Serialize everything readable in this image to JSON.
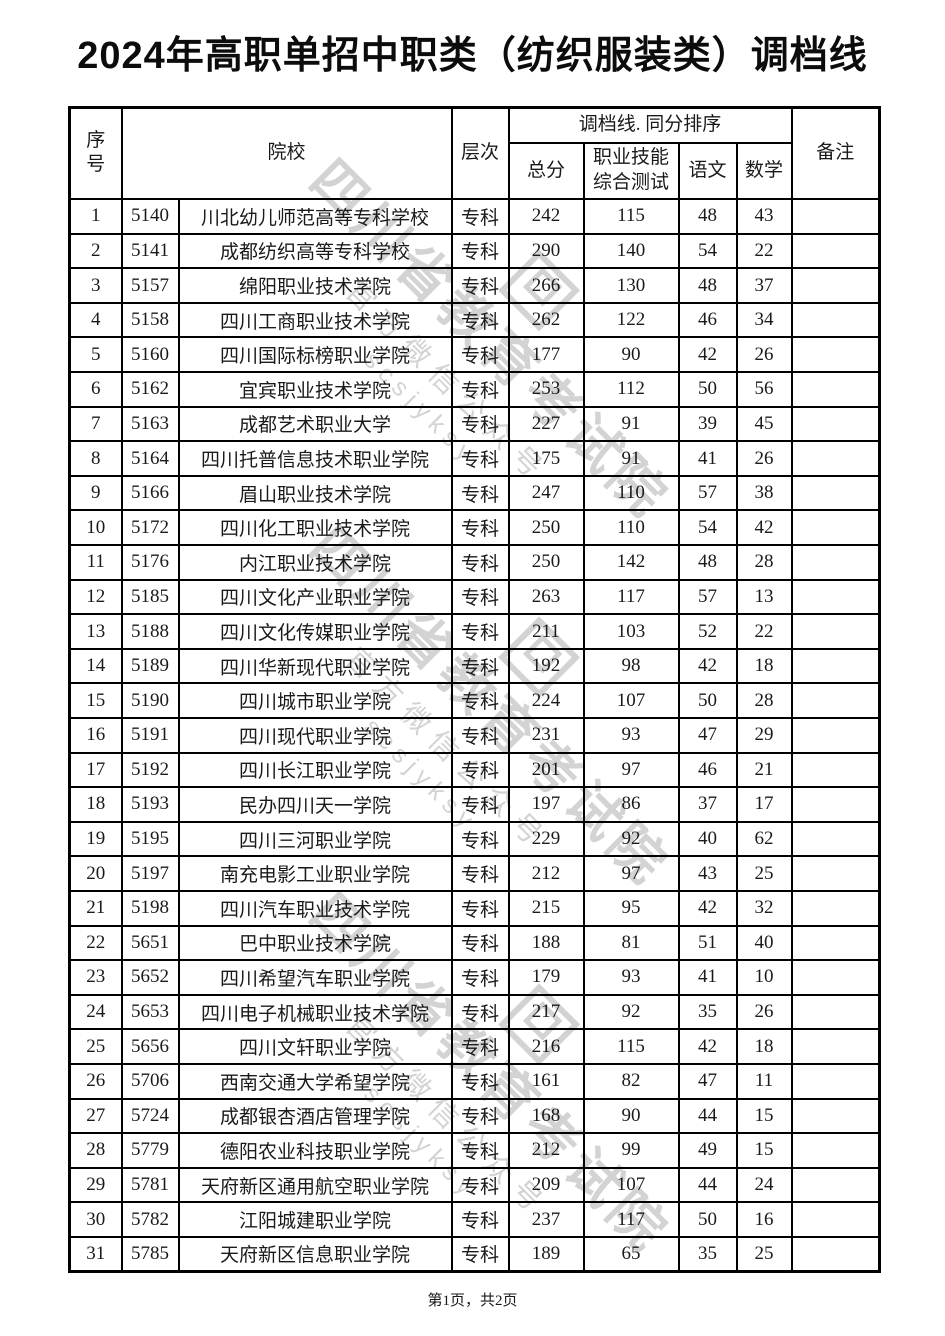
{
  "page": {
    "title": "2024年高职单招中职类（纺织服装类）调档线",
    "footer": "第1页，共2页"
  },
  "watermark": {
    "org": "四川省教育考试院",
    "account": "官方微信公众号",
    "wechat_id": "scsjyksy"
  },
  "table": {
    "header": {
      "seq": "序\n号",
      "school": "院校",
      "level": "层次",
      "tiebreak_group": "调档线. 同分排序",
      "total": "总分",
      "skill": "职业技能\n综合测试",
      "chinese": "语文",
      "math": "数学",
      "remark": "备注"
    },
    "rows": [
      [
        "1",
        "5140",
        "川北幼儿师范高等专科学校",
        "专科",
        "242",
        "115",
        "48",
        "43",
        ""
      ],
      [
        "2",
        "5141",
        "成都纺织高等专科学校",
        "专科",
        "290",
        "140",
        "54",
        "22",
        ""
      ],
      [
        "3",
        "5157",
        "绵阳职业技术学院",
        "专科",
        "266",
        "130",
        "48",
        "37",
        ""
      ],
      [
        "4",
        "5158",
        "四川工商职业技术学院",
        "专科",
        "262",
        "122",
        "46",
        "34",
        ""
      ],
      [
        "5",
        "5160",
        "四川国际标榜职业学院",
        "专科",
        "177",
        "90",
        "42",
        "26",
        ""
      ],
      [
        "6",
        "5162",
        "宜宾职业技术学院",
        "专科",
        "253",
        "112",
        "50",
        "56",
        ""
      ],
      [
        "7",
        "5163",
        "成都艺术职业大学",
        "专科",
        "227",
        "91",
        "39",
        "45",
        ""
      ],
      [
        "8",
        "5164",
        "四川托普信息技术职业学院",
        "专科",
        "175",
        "91",
        "41",
        "26",
        ""
      ],
      [
        "9",
        "5166",
        "眉山职业技术学院",
        "专科",
        "247",
        "110",
        "57",
        "38",
        ""
      ],
      [
        "10",
        "5172",
        "四川化工职业技术学院",
        "专科",
        "250",
        "110",
        "54",
        "42",
        ""
      ],
      [
        "11",
        "5176",
        "内江职业技术学院",
        "专科",
        "250",
        "142",
        "48",
        "28",
        ""
      ],
      [
        "12",
        "5185",
        "四川文化产业职业学院",
        "专科",
        "263",
        "117",
        "57",
        "13",
        ""
      ],
      [
        "13",
        "5188",
        "四川文化传媒职业学院",
        "专科",
        "211",
        "103",
        "52",
        "22",
        ""
      ],
      [
        "14",
        "5189",
        "四川华新现代职业学院",
        "专科",
        "192",
        "98",
        "42",
        "18",
        ""
      ],
      [
        "15",
        "5190",
        "四川城市职业学院",
        "专科",
        "224",
        "107",
        "50",
        "28",
        ""
      ],
      [
        "16",
        "5191",
        "四川现代职业学院",
        "专科",
        "231",
        "93",
        "47",
        "29",
        ""
      ],
      [
        "17",
        "5192",
        "四川长江职业学院",
        "专科",
        "201",
        "97",
        "46",
        "21",
        ""
      ],
      [
        "18",
        "5193",
        "民办四川天一学院",
        "专科",
        "197",
        "86",
        "37",
        "17",
        ""
      ],
      [
        "19",
        "5195",
        "四川三河职业学院",
        "专科",
        "229",
        "92",
        "40",
        "62",
        ""
      ],
      [
        "20",
        "5197",
        "南充电影工业职业学院",
        "专科",
        "212",
        "97",
        "43",
        "25",
        ""
      ],
      [
        "21",
        "5198",
        "四川汽车职业技术学院",
        "专科",
        "215",
        "95",
        "42",
        "32",
        ""
      ],
      [
        "22",
        "5651",
        "巴中职业技术学院",
        "专科",
        "188",
        "81",
        "51",
        "40",
        ""
      ],
      [
        "23",
        "5652",
        "四川希望汽车职业学院",
        "专科",
        "179",
        "93",
        "41",
        "10",
        ""
      ],
      [
        "24",
        "5653",
        "四川电子机械职业技术学院",
        "专科",
        "217",
        "92",
        "35",
        "26",
        ""
      ],
      [
        "25",
        "5656",
        "四川文轩职业学院",
        "专科",
        "216",
        "115",
        "42",
        "18",
        ""
      ],
      [
        "26",
        "5706",
        "西南交通大学希望学院",
        "专科",
        "161",
        "82",
        "47",
        "11",
        ""
      ],
      [
        "27",
        "5724",
        "成都银杏酒店管理学院",
        "专科",
        "168",
        "90",
        "44",
        "15",
        ""
      ],
      [
        "28",
        "5779",
        "德阳农业科技职业学院",
        "专科",
        "212",
        "99",
        "49",
        "15",
        ""
      ],
      [
        "29",
        "5781",
        "天府新区通用航空职业学院",
        "专科",
        "209",
        "107",
        "44",
        "24",
        ""
      ],
      [
        "30",
        "5782",
        "江阳城建职业学院",
        "专科",
        "237",
        "117",
        "50",
        "16",
        ""
      ],
      [
        "31",
        "5785",
        "天府新区信息职业学院",
        "专科",
        "189",
        "65",
        "35",
        "25",
        ""
      ]
    ]
  }
}
